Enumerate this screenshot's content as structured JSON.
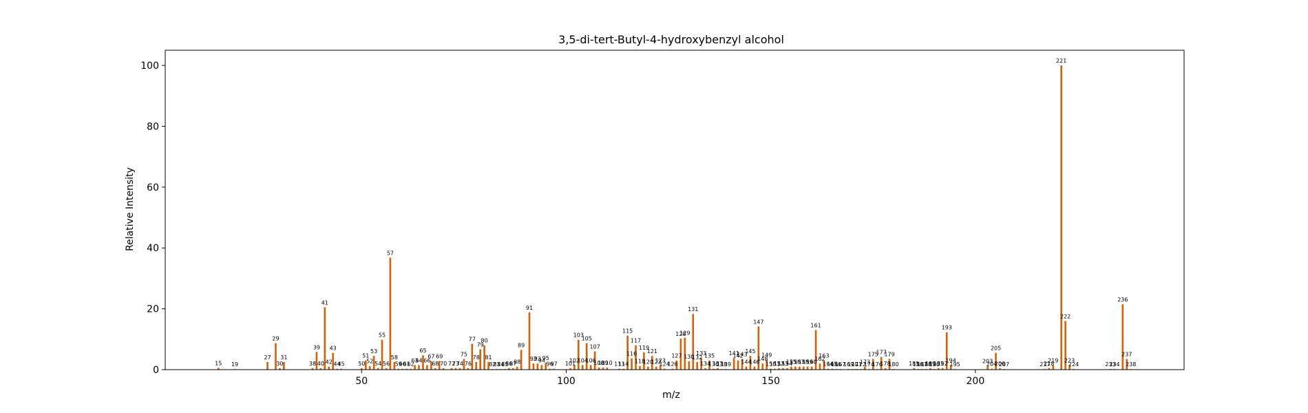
{
  "chart_data": {
    "type": "bar",
    "title": "3,5-di-tert-Butyl-4-hydroxybenzyl alcohol",
    "xlabel": "m/z",
    "ylabel": "Relative Intensity",
    "xlim": [
      2,
      251
    ],
    "ylim": [
      0,
      105
    ],
    "xticks": [
      50,
      100,
      150,
      200
    ],
    "yticks": [
      0,
      20,
      40,
      60,
      80,
      100
    ],
    "grid": false,
    "color": "#d95f02",
    "peaks": [
      {
        "mz": 15,
        "intensity": 0.6
      },
      {
        "mz": 19,
        "intensity": 0.2
      },
      {
        "mz": 27,
        "intensity": 2.5
      },
      {
        "mz": 29,
        "intensity": 8.7
      },
      {
        "mz": 30,
        "intensity": 0.5
      },
      {
        "mz": 31,
        "intensity": 2.5
      },
      {
        "mz": 38,
        "intensity": 0.5
      },
      {
        "mz": 39,
        "intensity": 5.8
      },
      {
        "mz": 40,
        "intensity": 0.5
      },
      {
        "mz": 41,
        "intensity": 20.5
      },
      {
        "mz": 42,
        "intensity": 1.0
      },
      {
        "mz": 43,
        "intensity": 5.5
      },
      {
        "mz": 44,
        "intensity": 0.3
      },
      {
        "mz": 45,
        "intensity": 0.3
      },
      {
        "mz": 50,
        "intensity": 0.5
      },
      {
        "mz": 51,
        "intensity": 3.0
      },
      {
        "mz": 52,
        "intensity": 1.2
      },
      {
        "mz": 53,
        "intensity": 4.5
      },
      {
        "mz": 54,
        "intensity": 0.5
      },
      {
        "mz": 55,
        "intensity": 9.8
      },
      {
        "mz": 56,
        "intensity": 0.5
      },
      {
        "mz": 57,
        "intensity": 36.8
      },
      {
        "mz": 58,
        "intensity": 2.5
      },
      {
        "mz": 59,
        "intensity": 0.3
      },
      {
        "mz": 60,
        "intensity": 0.3
      },
      {
        "mz": 61,
        "intensity": 0.3
      },
      {
        "mz": 62,
        "intensity": 0.3
      },
      {
        "mz": 63,
        "intensity": 1.5
      },
      {
        "mz": 64,
        "intensity": 1.5
      },
      {
        "mz": 65,
        "intensity": 4.7
      },
      {
        "mz": 66,
        "intensity": 1.5
      },
      {
        "mz": 67,
        "intensity": 2.8
      },
      {
        "mz": 68,
        "intensity": 0.5
      },
      {
        "mz": 69,
        "intensity": 2.8
      },
      {
        "mz": 70,
        "intensity": 0.5
      },
      {
        "mz": 72,
        "intensity": 0.5
      },
      {
        "mz": 73,
        "intensity": 0.5
      },
      {
        "mz": 74,
        "intensity": 0.5
      },
      {
        "mz": 75,
        "intensity": 3.5
      },
      {
        "mz": 76,
        "intensity": 0.5
      },
      {
        "mz": 77,
        "intensity": 8.5
      },
      {
        "mz": 78,
        "intensity": 2.5
      },
      {
        "mz": 79,
        "intensity": 6.7
      },
      {
        "mz": 80,
        "intensity": 8.0
      },
      {
        "mz": 81,
        "intensity": 2.5
      },
      {
        "mz": 82,
        "intensity": 0.2
      },
      {
        "mz": 83,
        "intensity": 0.2
      },
      {
        "mz": 84,
        "intensity": 0.2
      },
      {
        "mz": 85,
        "intensity": 0.2
      },
      {
        "mz": 86,
        "intensity": 0.5
      },
      {
        "mz": 87,
        "intensity": 0.5
      },
      {
        "mz": 88,
        "intensity": 1.0
      },
      {
        "mz": 89,
        "intensity": 6.5
      },
      {
        "mz": 91,
        "intensity": 18.8
      },
      {
        "mz": 92,
        "intensity": 2.0
      },
      {
        "mz": 93,
        "intensity": 2.0
      },
      {
        "mz": 94,
        "intensity": 1.5
      },
      {
        "mz": 95,
        "intensity": 2.3
      },
      {
        "mz": 96,
        "intensity": 0.3
      },
      {
        "mz": 97,
        "intensity": 0.3
      },
      {
        "mz": 101,
        "intensity": 0.5
      },
      {
        "mz": 102,
        "intensity": 1.5
      },
      {
        "mz": 103,
        "intensity": 9.8
      },
      {
        "mz": 104,
        "intensity": 1.5
      },
      {
        "mz": 105,
        "intensity": 8.7
      },
      {
        "mz": 106,
        "intensity": 1.5
      },
      {
        "mz": 107,
        "intensity": 6.0
      },
      {
        "mz": 108,
        "intensity": 0.7
      },
      {
        "mz": 109,
        "intensity": 0.7
      },
      {
        "mz": 110,
        "intensity": 0.7
      },
      {
        "mz": 113,
        "intensity": 0.3
      },
      {
        "mz": 114,
        "intensity": 0.3
      },
      {
        "mz": 115,
        "intensity": 11.2
      },
      {
        "mz": 116,
        "intensity": 3.7
      },
      {
        "mz": 117,
        "intensity": 8.0
      },
      {
        "mz": 118,
        "intensity": 1.2
      },
      {
        "mz": 119,
        "intensity": 5.7
      },
      {
        "mz": 120,
        "intensity": 1.0
      },
      {
        "mz": 121,
        "intensity": 4.5
      },
      {
        "mz": 122,
        "intensity": 1.0
      },
      {
        "mz": 123,
        "intensity": 1.5
      },
      {
        "mz": 124,
        "intensity": 0.3
      },
      {
        "mz": 126,
        "intensity": 0.3
      },
      {
        "mz": 127,
        "intensity": 3.0
      },
      {
        "mz": 128,
        "intensity": 10.2
      },
      {
        "mz": 129,
        "intensity": 10.5
      },
      {
        "mz": 130,
        "intensity": 2.7
      },
      {
        "mz": 131,
        "intensity": 18.3
      },
      {
        "mz": 132,
        "intensity": 2.5
      },
      {
        "mz": 133,
        "intensity": 3.8
      },
      {
        "mz": 134,
        "intensity": 0.5
      },
      {
        "mz": 135,
        "intensity": 3.0
      },
      {
        "mz": 136,
        "intensity": 0.3
      },
      {
        "mz": 137,
        "intensity": 0.5
      },
      {
        "mz": 138,
        "intensity": 0.2
      },
      {
        "mz": 139,
        "intensity": 0.2
      },
      {
        "mz": 141,
        "intensity": 3.8
      },
      {
        "mz": 142,
        "intensity": 3.0
      },
      {
        "mz": 143,
        "intensity": 3.5
      },
      {
        "mz": 144,
        "intensity": 1.0
      },
      {
        "mz": 145,
        "intensity": 4.5
      },
      {
        "mz": 146,
        "intensity": 1.0
      },
      {
        "mz": 147,
        "intensity": 14.2
      },
      {
        "mz": 148,
        "intensity": 2.0
      },
      {
        "mz": 149,
        "intensity": 3.3
      },
      {
        "mz": 150,
        "intensity": 0.3
      },
      {
        "mz": 151,
        "intensity": 0.3
      },
      {
        "mz": 152,
        "intensity": 0.5
      },
      {
        "mz": 153,
        "intensity": 0.5
      },
      {
        "mz": 154,
        "intensity": 0.5
      },
      {
        "mz": 155,
        "intensity": 1.0
      },
      {
        "mz": 156,
        "intensity": 1.0
      },
      {
        "mz": 157,
        "intensity": 1.0
      },
      {
        "mz": 158,
        "intensity": 1.0
      },
      {
        "mz": 159,
        "intensity": 1.0
      },
      {
        "mz": 160,
        "intensity": 1.0
      },
      {
        "mz": 161,
        "intensity": 13.0
      },
      {
        "mz": 162,
        "intensity": 2.0
      },
      {
        "mz": 163,
        "intensity": 3.0
      },
      {
        "mz": 164,
        "intensity": 0.3
      },
      {
        "mz": 165,
        "intensity": 0.3
      },
      {
        "mz": 166,
        "intensity": 0.2
      },
      {
        "mz": 167,
        "intensity": 0.2
      },
      {
        "mz": 169,
        "intensity": 0.2
      },
      {
        "mz": 170,
        "intensity": 0.2
      },
      {
        "mz": 171,
        "intensity": 0.2
      },
      {
        "mz": 172,
        "intensity": 0.2
      },
      {
        "mz": 173,
        "intensity": 1.0
      },
      {
        "mz": 174,
        "intensity": 0.2
      },
      {
        "mz": 175,
        "intensity": 3.5
      },
      {
        "mz": 176,
        "intensity": 0.2
      },
      {
        "mz": 177,
        "intensity": 4.2
      },
      {
        "mz": 178,
        "intensity": 0.5
      },
      {
        "mz": 179,
        "intensity": 3.5
      },
      {
        "mz": 180,
        "intensity": 0.2
      },
      {
        "mz": 185,
        "intensity": 0.5
      },
      {
        "mz": 186,
        "intensity": 0.2
      },
      {
        "mz": 187,
        "intensity": 0.2
      },
      {
        "mz": 188,
        "intensity": 0.2
      },
      {
        "mz": 189,
        "intensity": 0.5
      },
      {
        "mz": 190,
        "intensity": 0.2
      },
      {
        "mz": 191,
        "intensity": 0.5
      },
      {
        "mz": 192,
        "intensity": 0.5
      },
      {
        "mz": 193,
        "intensity": 12.3
      },
      {
        "mz": 194,
        "intensity": 1.5
      },
      {
        "mz": 195,
        "intensity": 0.2
      },
      {
        "mz": 203,
        "intensity": 1.2
      },
      {
        "mz": 204,
        "intensity": 0.3
      },
      {
        "mz": 205,
        "intensity": 5.5
      },
      {
        "mz": 206,
        "intensity": 0.5
      },
      {
        "mz": 207,
        "intensity": 0.2
      },
      {
        "mz": 217,
        "intensity": 0.2
      },
      {
        "mz": 218,
        "intensity": 0.5
      },
      {
        "mz": 219,
        "intensity": 1.5
      },
      {
        "mz": 221,
        "intensity": 100.0
      },
      {
        "mz": 222,
        "intensity": 16.0
      },
      {
        "mz": 223,
        "intensity": 1.5
      },
      {
        "mz": 224,
        "intensity": 0.2
      },
      {
        "mz": 233,
        "intensity": 0.2
      },
      {
        "mz": 234,
        "intensity": 0.2
      },
      {
        "mz": 236,
        "intensity": 21.5
      },
      {
        "mz": 237,
        "intensity": 3.5
      },
      {
        "mz": 238,
        "intensity": 0.2
      }
    ]
  }
}
